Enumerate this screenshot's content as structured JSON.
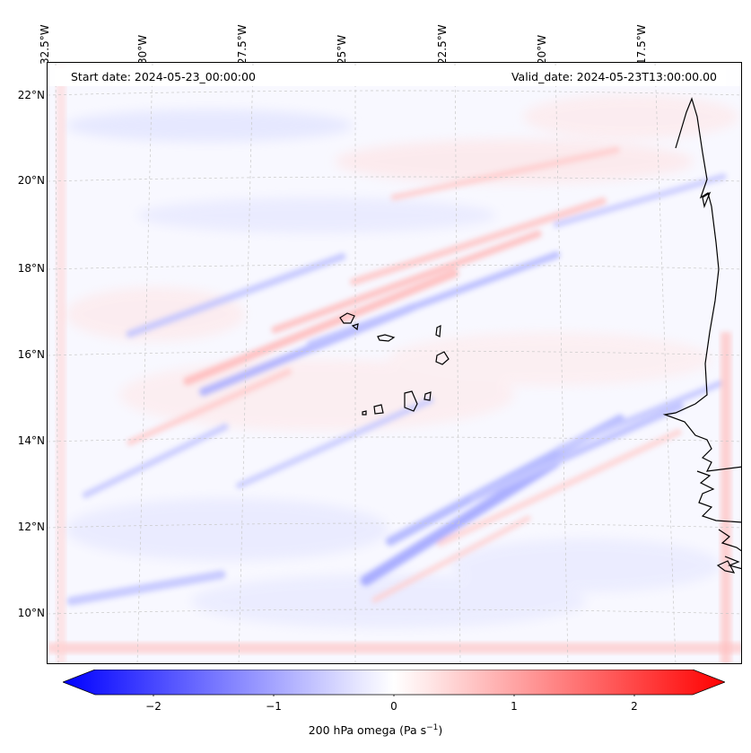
{
  "header": {
    "start_date": "Start date: 2024-05-23_00:00:00",
    "valid_date": "Valid_date: 2024-05-23T13:00:00.00"
  },
  "map": {
    "longitude_labels": [
      "32.5°W",
      "30°W",
      "27.5°W",
      "25°W",
      "22.5°W",
      "20°W",
      "17.5°W"
    ],
    "latitude_labels": [
      "22°N",
      "20°N",
      "18°N",
      "16°N",
      "14°N",
      "12°N",
      "10°N"
    ],
    "gridlines": "dashed"
  },
  "colorbar": {
    "ticks": [
      "−2",
      "−1",
      "0",
      "1",
      "2"
    ],
    "label": "200 hPa omega (Pa s",
    "label_exp": "−1",
    "label_end": ")",
    "range": [
      -2.6,
      2.6
    ],
    "colors": {
      "negative": "#0000ff",
      "zero": "#ffffff",
      "positive": "#ff0000"
    }
  }
}
